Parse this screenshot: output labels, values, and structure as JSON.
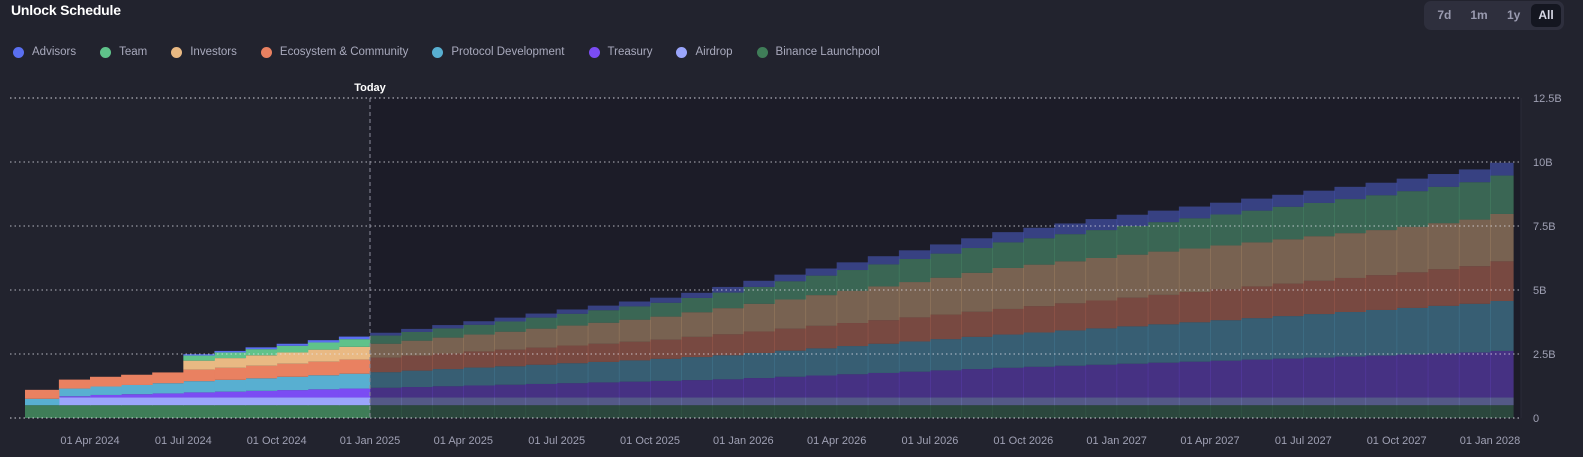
{
  "header": {
    "title": "Unlock Schedule",
    "range_buttons": [
      {
        "label": "7d",
        "active": false
      },
      {
        "label": "1m",
        "active": false
      },
      {
        "label": "1y",
        "active": false
      },
      {
        "label": "All",
        "active": true
      }
    ]
  },
  "chart_data": {
    "type": "area",
    "stacked": true,
    "step": true,
    "title": "Unlock Schedule",
    "today_label": "Today",
    "today_date": "2025-01",
    "ylim": [
      0,
      12.5
    ],
    "yunit": "B",
    "yticks": [
      {
        "value": 0,
        "label": "0"
      },
      {
        "value": 2.5,
        "label": "2.5B"
      },
      {
        "value": 5,
        "label": "5B"
      },
      {
        "value": 7.5,
        "label": "7.5B"
      },
      {
        "value": 10,
        "label": "10B"
      },
      {
        "value": 12.5,
        "label": "12.5B"
      }
    ],
    "xlim": [
      "2024-02",
      "2028-02"
    ],
    "xticks": [
      {
        "date": "2024-04",
        "label": "01 Apr 2024"
      },
      {
        "date": "2024-07",
        "label": "01 Jul 2024"
      },
      {
        "date": "2024-10",
        "label": "01 Oct 2024"
      },
      {
        "date": "2025-01",
        "label": "01 Jan 2025"
      },
      {
        "date": "2025-04",
        "label": "01 Apr 2025"
      },
      {
        "date": "2025-07",
        "label": "01 Jul 2025"
      },
      {
        "date": "2025-10",
        "label": "01 Oct 2025"
      },
      {
        "date": "2026-01",
        "label": "01 Jan 2026"
      },
      {
        "date": "2026-04",
        "label": "01 Apr 2026"
      },
      {
        "date": "2026-07",
        "label": "01 Jul 2026"
      },
      {
        "date": "2026-10",
        "label": "01 Oct 2026"
      },
      {
        "date": "2027-01",
        "label": "01 Jan 2027"
      },
      {
        "date": "2027-04",
        "label": "01 Apr 2027"
      },
      {
        "date": "2027-07",
        "label": "01 Jul 2027"
      },
      {
        "date": "2027-10",
        "label": "01 Oct 2027"
      },
      {
        "date": "2028-01",
        "label": "01 Jan 2028"
      }
    ],
    "x": [
      "2024-02",
      "2024-03",
      "2024-04",
      "2024-05",
      "2024-06",
      "2024-07",
      "2024-08",
      "2024-09",
      "2024-10",
      "2024-11",
      "2024-12",
      "2025-01",
      "2025-02",
      "2025-03",
      "2025-04",
      "2025-05",
      "2025-06",
      "2025-07",
      "2025-08",
      "2025-09",
      "2025-10",
      "2025-11",
      "2025-12",
      "2026-01",
      "2026-02",
      "2026-03",
      "2026-04",
      "2026-05",
      "2026-06",
      "2026-07",
      "2026-08",
      "2026-09",
      "2026-10",
      "2026-11",
      "2026-12",
      "2027-01",
      "2027-02",
      "2027-03",
      "2027-04",
      "2027-05",
      "2027-06",
      "2027-07",
      "2027-08",
      "2027-09",
      "2027-10",
      "2027-11",
      "2027-12",
      "2028-01"
    ],
    "series": [
      {
        "name": "Binance Launchpool",
        "color": "#3f7d58",
        "values": [
          0.5,
          0.5,
          0.5,
          0.5,
          0.5,
          0.5,
          0.5,
          0.5,
          0.5,
          0.5,
          0.5,
          0.5,
          0.5,
          0.5,
          0.5,
          0.5,
          0.5,
          0.5,
          0.5,
          0.5,
          0.5,
          0.5,
          0.5,
          0.5,
          0.5,
          0.5,
          0.5,
          0.5,
          0.5,
          0.5,
          0.5,
          0.5,
          0.5,
          0.5,
          0.5,
          0.5,
          0.5,
          0.5,
          0.5,
          0.5,
          0.5,
          0.5,
          0.5,
          0.5,
          0.5,
          0.5,
          0.5,
          0.5
        ]
      },
      {
        "name": "Airdrop",
        "color": "#9aa5fb",
        "values": [
          0,
          0.3,
          0.3,
          0.3,
          0.3,
          0.3,
          0.3,
          0.3,
          0.3,
          0.3,
          0.3,
          0.3,
          0.3,
          0.3,
          0.3,
          0.3,
          0.3,
          0.3,
          0.3,
          0.3,
          0.3,
          0.3,
          0.3,
          0.3,
          0.3,
          0.3,
          0.3,
          0.3,
          0.3,
          0.3,
          0.3,
          0.3,
          0.3,
          0.3,
          0.3,
          0.3,
          0.3,
          0.3,
          0.3,
          0.3,
          0.3,
          0.3,
          0.3,
          0.3,
          0.3,
          0.3,
          0.3,
          0.3
        ]
      },
      {
        "name": "Treasury",
        "color": "#7b4cf3",
        "values": [
          0,
          0.05,
          0.1,
          0.13,
          0.16,
          0.2,
          0.23,
          0.26,
          0.29,
          0.32,
          0.35,
          0.38,
          0.41,
          0.44,
          0.47,
          0.5,
          0.53,
          0.56,
          0.59,
          0.62,
          0.65,
          0.68,
          0.71,
          0.76,
          0.81,
          0.86,
          0.91,
          0.96,
          1.01,
          1.06,
          1.11,
          1.16,
          1.2,
          1.24,
          1.28,
          1.32,
          1.36,
          1.4,
          1.44,
          1.48,
          1.52,
          1.56,
          1.6,
          1.64,
          1.68,
          1.72,
          1.76,
          1.82
        ]
      },
      {
        "name": "Protocol Development",
        "color": "#58afd1",
        "values": [
          0.25,
          0.3,
          0.33,
          0.36,
          0.4,
          0.44,
          0.46,
          0.49,
          0.52,
          0.55,
          0.58,
          0.61,
          0.64,
          0.67,
          0.7,
          0.72,
          0.75,
          0.78,
          0.8,
          0.83,
          0.86,
          0.9,
          0.94,
          0.98,
          1.02,
          1.06,
          1.1,
          1.14,
          1.18,
          1.22,
          1.26,
          1.3,
          1.34,
          1.38,
          1.42,
          1.46,
          1.5,
          1.54,
          1.58,
          1.62,
          1.66,
          1.7,
          1.74,
          1.78,
          1.82,
          1.86,
          1.9,
          1.95
        ]
      },
      {
        "name": "Ecosystem & Community",
        "color": "#e98161",
        "values": [
          0.35,
          0.35,
          0.38,
          0.4,
          0.42,
          0.45,
          0.47,
          0.49,
          0.51,
          0.53,
          0.55,
          0.57,
          0.59,
          0.61,
          0.63,
          0.65,
          0.67,
          0.69,
          0.71,
          0.73,
          0.75,
          0.79,
          0.82,
          0.84,
          0.86,
          0.88,
          0.9,
          0.92,
          0.94,
          0.96,
          0.98,
          1.0,
          1.03,
          1.06,
          1.09,
          1.12,
          1.15,
          1.18,
          1.21,
          1.24,
          1.27,
          1.3,
          1.33,
          1.36,
          1.39,
          1.43,
          1.47,
          1.55
        ]
      },
      {
        "name": "Investors",
        "color": "#e9b983",
        "values": [
          0,
          0,
          0,
          0,
          0,
          0.35,
          0.38,
          0.41,
          0.44,
          0.47,
          0.5,
          0.54,
          0.58,
          0.62,
          0.66,
          0.7,
          0.74,
          0.78,
          0.82,
          0.86,
          0.9,
          0.96,
          1.02,
          1.08,
          1.14,
          1.2,
          1.26,
          1.32,
          1.38,
          1.44,
          1.52,
          1.6,
          1.62,
          1.64,
          1.66,
          1.68,
          1.69,
          1.7,
          1.71,
          1.72,
          1.73,
          1.74,
          1.75,
          1.76,
          1.78,
          1.8,
          1.82,
          1.85
        ]
      },
      {
        "name": "Team",
        "color": "#5fc28a",
        "values": [
          0,
          0,
          0,
          0,
          0,
          0.2,
          0.22,
          0.24,
          0.26,
          0.28,
          0.3,
          0.32,
          0.34,
          0.36,
          0.38,
          0.4,
          0.43,
          0.46,
          0.49,
          0.52,
          0.54,
          0.56,
          0.61,
          0.66,
          0.71,
          0.76,
          0.81,
          0.86,
          0.9,
          0.94,
          0.97,
          1.0,
          1.03,
          1.06,
          1.09,
          1.12,
          1.15,
          1.18,
          1.21,
          1.24,
          1.27,
          1.3,
          1.33,
          1.36,
          1.39,
          1.42,
          1.46,
          1.5
        ]
      },
      {
        "name": "Advisors",
        "color": "#5a6ff0",
        "values": [
          0,
          0,
          0,
          0,
          0,
          0.05,
          0.06,
          0.07,
          0.08,
          0.09,
          0.1,
          0.11,
          0.12,
          0.13,
          0.14,
          0.15,
          0.16,
          0.17,
          0.18,
          0.19,
          0.2,
          0.2,
          0.22,
          0.24,
          0.26,
          0.28,
          0.3,
          0.32,
          0.34,
          0.36,
          0.38,
          0.4,
          0.41,
          0.42,
          0.43,
          0.44,
          0.45,
          0.46,
          0.46,
          0.47,
          0.47,
          0.48,
          0.48,
          0.49,
          0.49,
          0.5,
          0.5,
          0.5
        ]
      }
    ],
    "legend": [
      "Advisors",
      "Team",
      "Investors",
      "Ecosystem & Community",
      "Protocol Development",
      "Treasury",
      "Airdrop",
      "Binance Launchpool"
    ],
    "legend_position": "top-left",
    "grid": "dotted-horizontal"
  }
}
